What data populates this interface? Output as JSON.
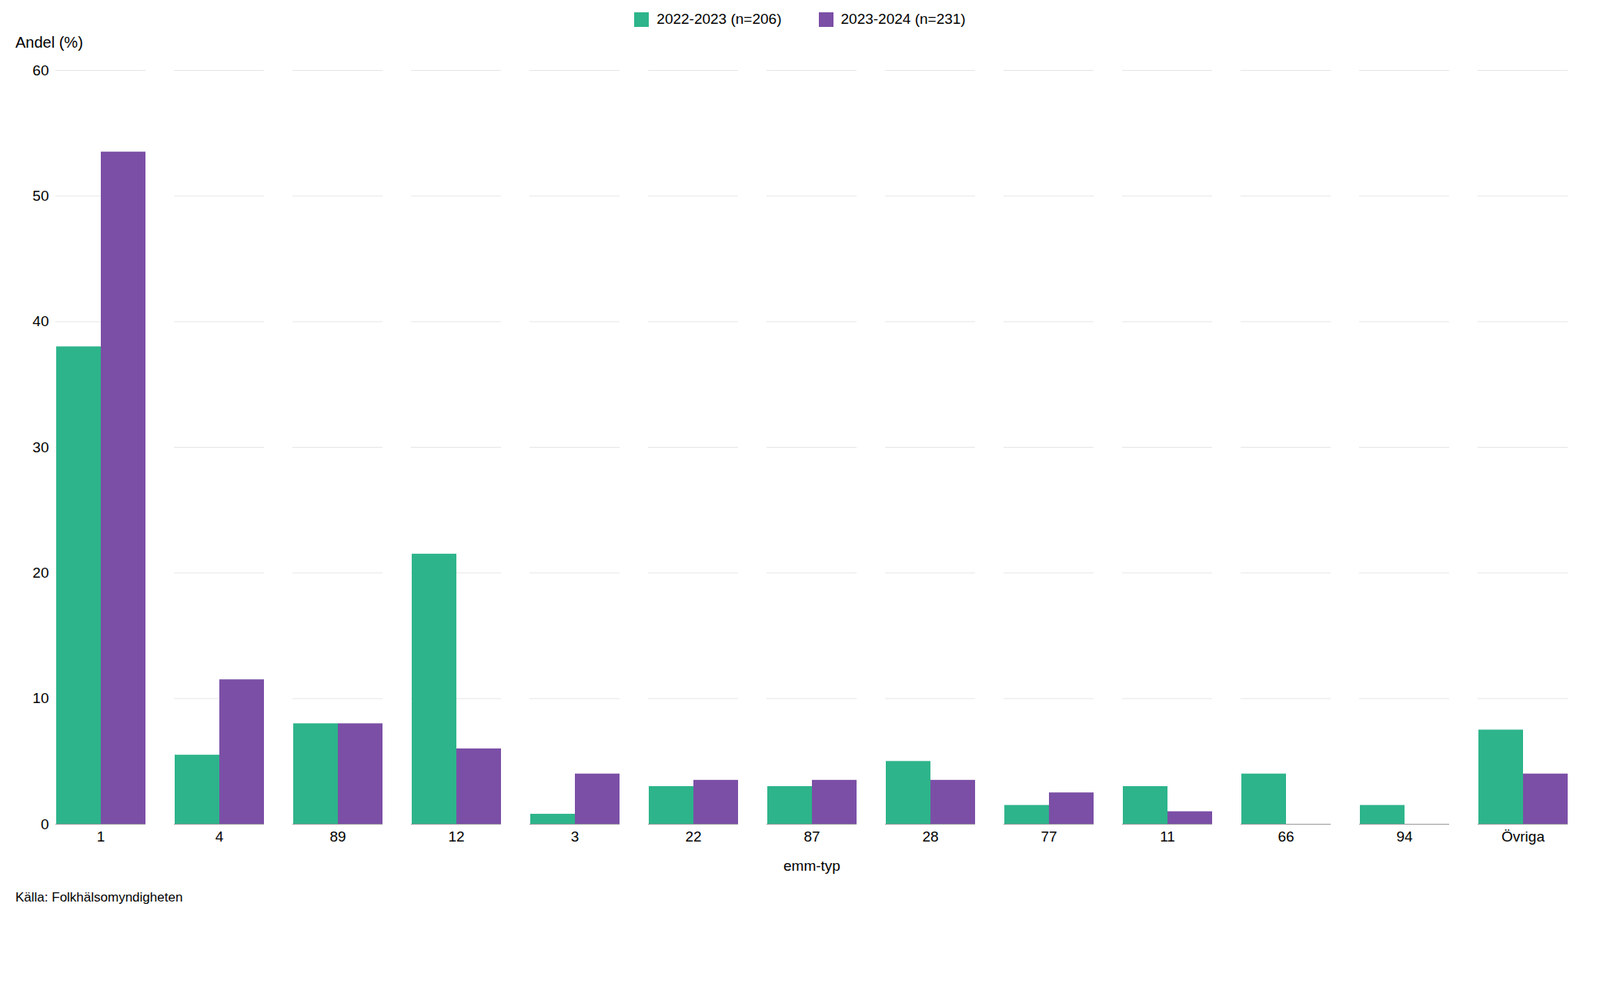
{
  "chart_data": {
    "type": "bar",
    "categories": [
      "1",
      "4",
      "89",
      "12",
      "3",
      "22",
      "87",
      "28",
      "77",
      "11",
      "66",
      "94",
      "Övriga"
    ],
    "series": [
      {
        "name": "2022-2023 (n=206)",
        "color": "#2db48a",
        "values": [
          38,
          5.5,
          8,
          21.5,
          0.8,
          3,
          3,
          5,
          1.5,
          3,
          4,
          1.5,
          7.5
        ]
      },
      {
        "name": "2023-2024 (n=231)",
        "color": "#7b4fa6",
        "values": [
          53.5,
          11.5,
          8,
          6,
          4,
          3.5,
          3.5,
          3.5,
          2.5,
          1,
          0,
          0,
          4
        ]
      }
    ],
    "xlabel": "emm-typ",
    "ylabel": "Andel (%)",
    "caption": "Källa: Folkhälsomyndigheten",
    "ylim": [
      0,
      60
    ],
    "yticks": [
      0,
      10,
      20,
      30,
      40,
      50,
      60
    ],
    "grid": true,
    "legend": "top"
  }
}
